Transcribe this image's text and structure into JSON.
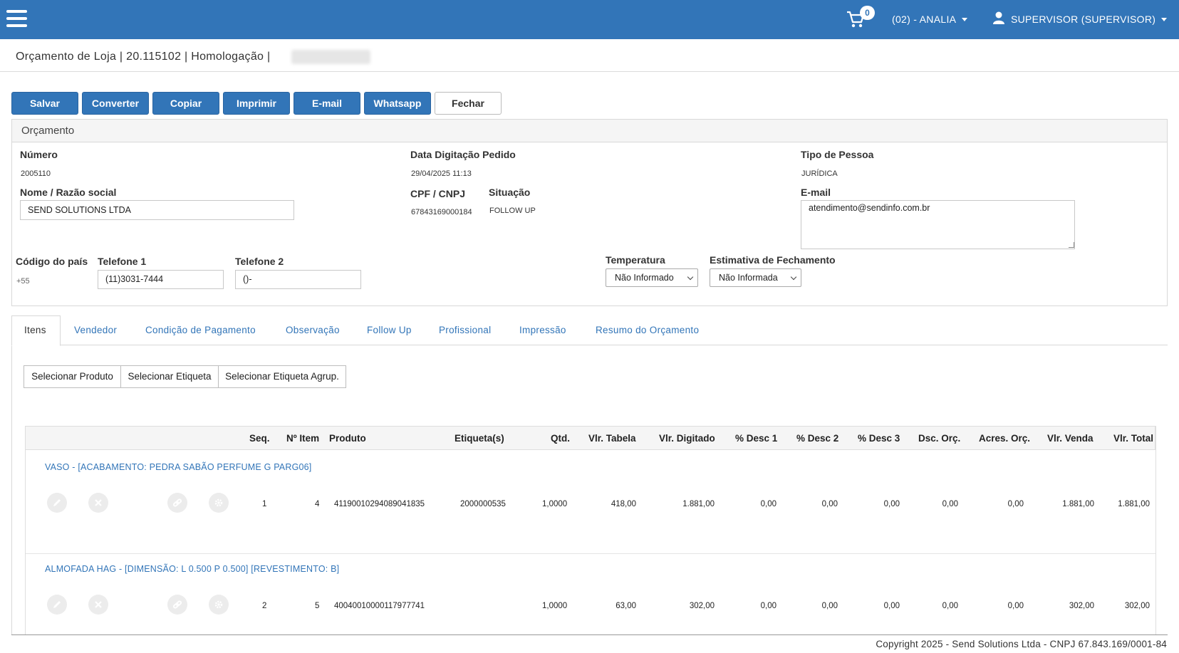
{
  "header": {
    "cart_count": "0",
    "store": "(02) - ANALIA",
    "user": "SUPERVISOR (SUPERVISOR)"
  },
  "breadcrumb": "Orçamento de Loja | 20.115102 | Homologação |",
  "actions": {
    "salvar": "Salvar",
    "converter": "Converter",
    "copiar": "Copiar",
    "imprimir": "Imprimir",
    "email": "E-mail",
    "whatsapp": "Whatsapp",
    "fechar": "Fechar"
  },
  "panel": {
    "title": "Orçamento",
    "numero_label": "Número",
    "numero": "2005110",
    "data_label": "Data Digitação Pedido",
    "data": "29/04/2025 11:13",
    "tipo_label": "Tipo de Pessoa",
    "tipo": "JURÍDICA",
    "nome_label": "Nome / Razão social",
    "nome": "SEND SOLUTIONS LTDA",
    "cpf_label": "CPF / CNPJ",
    "cpf": "67843169000184",
    "situacao_label": "Situação",
    "situacao": "FOLLOW UP",
    "email_label": "E-mail",
    "email": "atendimento@sendinfo.com.br",
    "pais_label": "Código do país",
    "pais": "+55",
    "tel1_label": "Telefone 1",
    "tel1": "(11)3031-7444",
    "tel2_label": "Telefone 2",
    "tel2": "()-",
    "temp_label": "Temperatura",
    "temp": "Não Informado",
    "estim_label": "Estimativa de Fechamento",
    "estim": "Não Informada"
  },
  "tabs": [
    "Itens",
    "Vendedor",
    "Condição de Pagamento",
    "Observação",
    "Follow Up",
    "Profissional",
    "Impressão",
    "Resumo do Orçamento"
  ],
  "selectors": [
    "Selecionar Produto",
    "Selecionar Etiqueta",
    "Selecionar Etiqueta Agrup."
  ],
  "table": {
    "headers": [
      "Seq.",
      "Nº Item",
      "Produto",
      "Etiqueta(s)",
      "Qtd.",
      "Vlr. Tabela",
      "Vlr. Digitado",
      "% Desc 1",
      "% Desc 2",
      "% Desc 3",
      "Dsc. Orç.",
      "Acres. Orç.",
      "Vlr. Venda",
      "Vlr. Total"
    ],
    "rows": [
      {
        "title": "VASO - [ACABAMENTO: PEDRA SABÃO PERFUME G PARG06]",
        "seq": "1",
        "item": "4",
        "produto": "41190010294089041835",
        "etiqueta": "2000000535",
        "qtd": "1,0000",
        "tabela": "418,00",
        "digitado": "1.881,00",
        "d1": "0,00",
        "d2": "0,00",
        "d3": "0,00",
        "dsc": "0,00",
        "acres": "0,00",
        "venda": "1.881,00",
        "total": "1.881,00"
      },
      {
        "title": "ALMOFADA HAG - [DIMENSÃO: L 0.500 P 0.500] [REVESTIMENTO: B]",
        "seq": "2",
        "item": "5",
        "produto": "40040010000117977741",
        "etiqueta": "",
        "qtd": "1,0000",
        "tabela": "63,00",
        "digitado": "302,00",
        "d1": "0,00",
        "d2": "0,00",
        "d3": "0,00",
        "dsc": "0,00",
        "acres": "0,00",
        "venda": "302,00",
        "total": "302,00"
      }
    ]
  },
  "footer": "Copyright 2025 - Send Solutions Ltda - CNPJ 67.843.169/0001-84",
  "colors": {
    "primary": "#3275b8",
    "link": "#3275b8"
  }
}
